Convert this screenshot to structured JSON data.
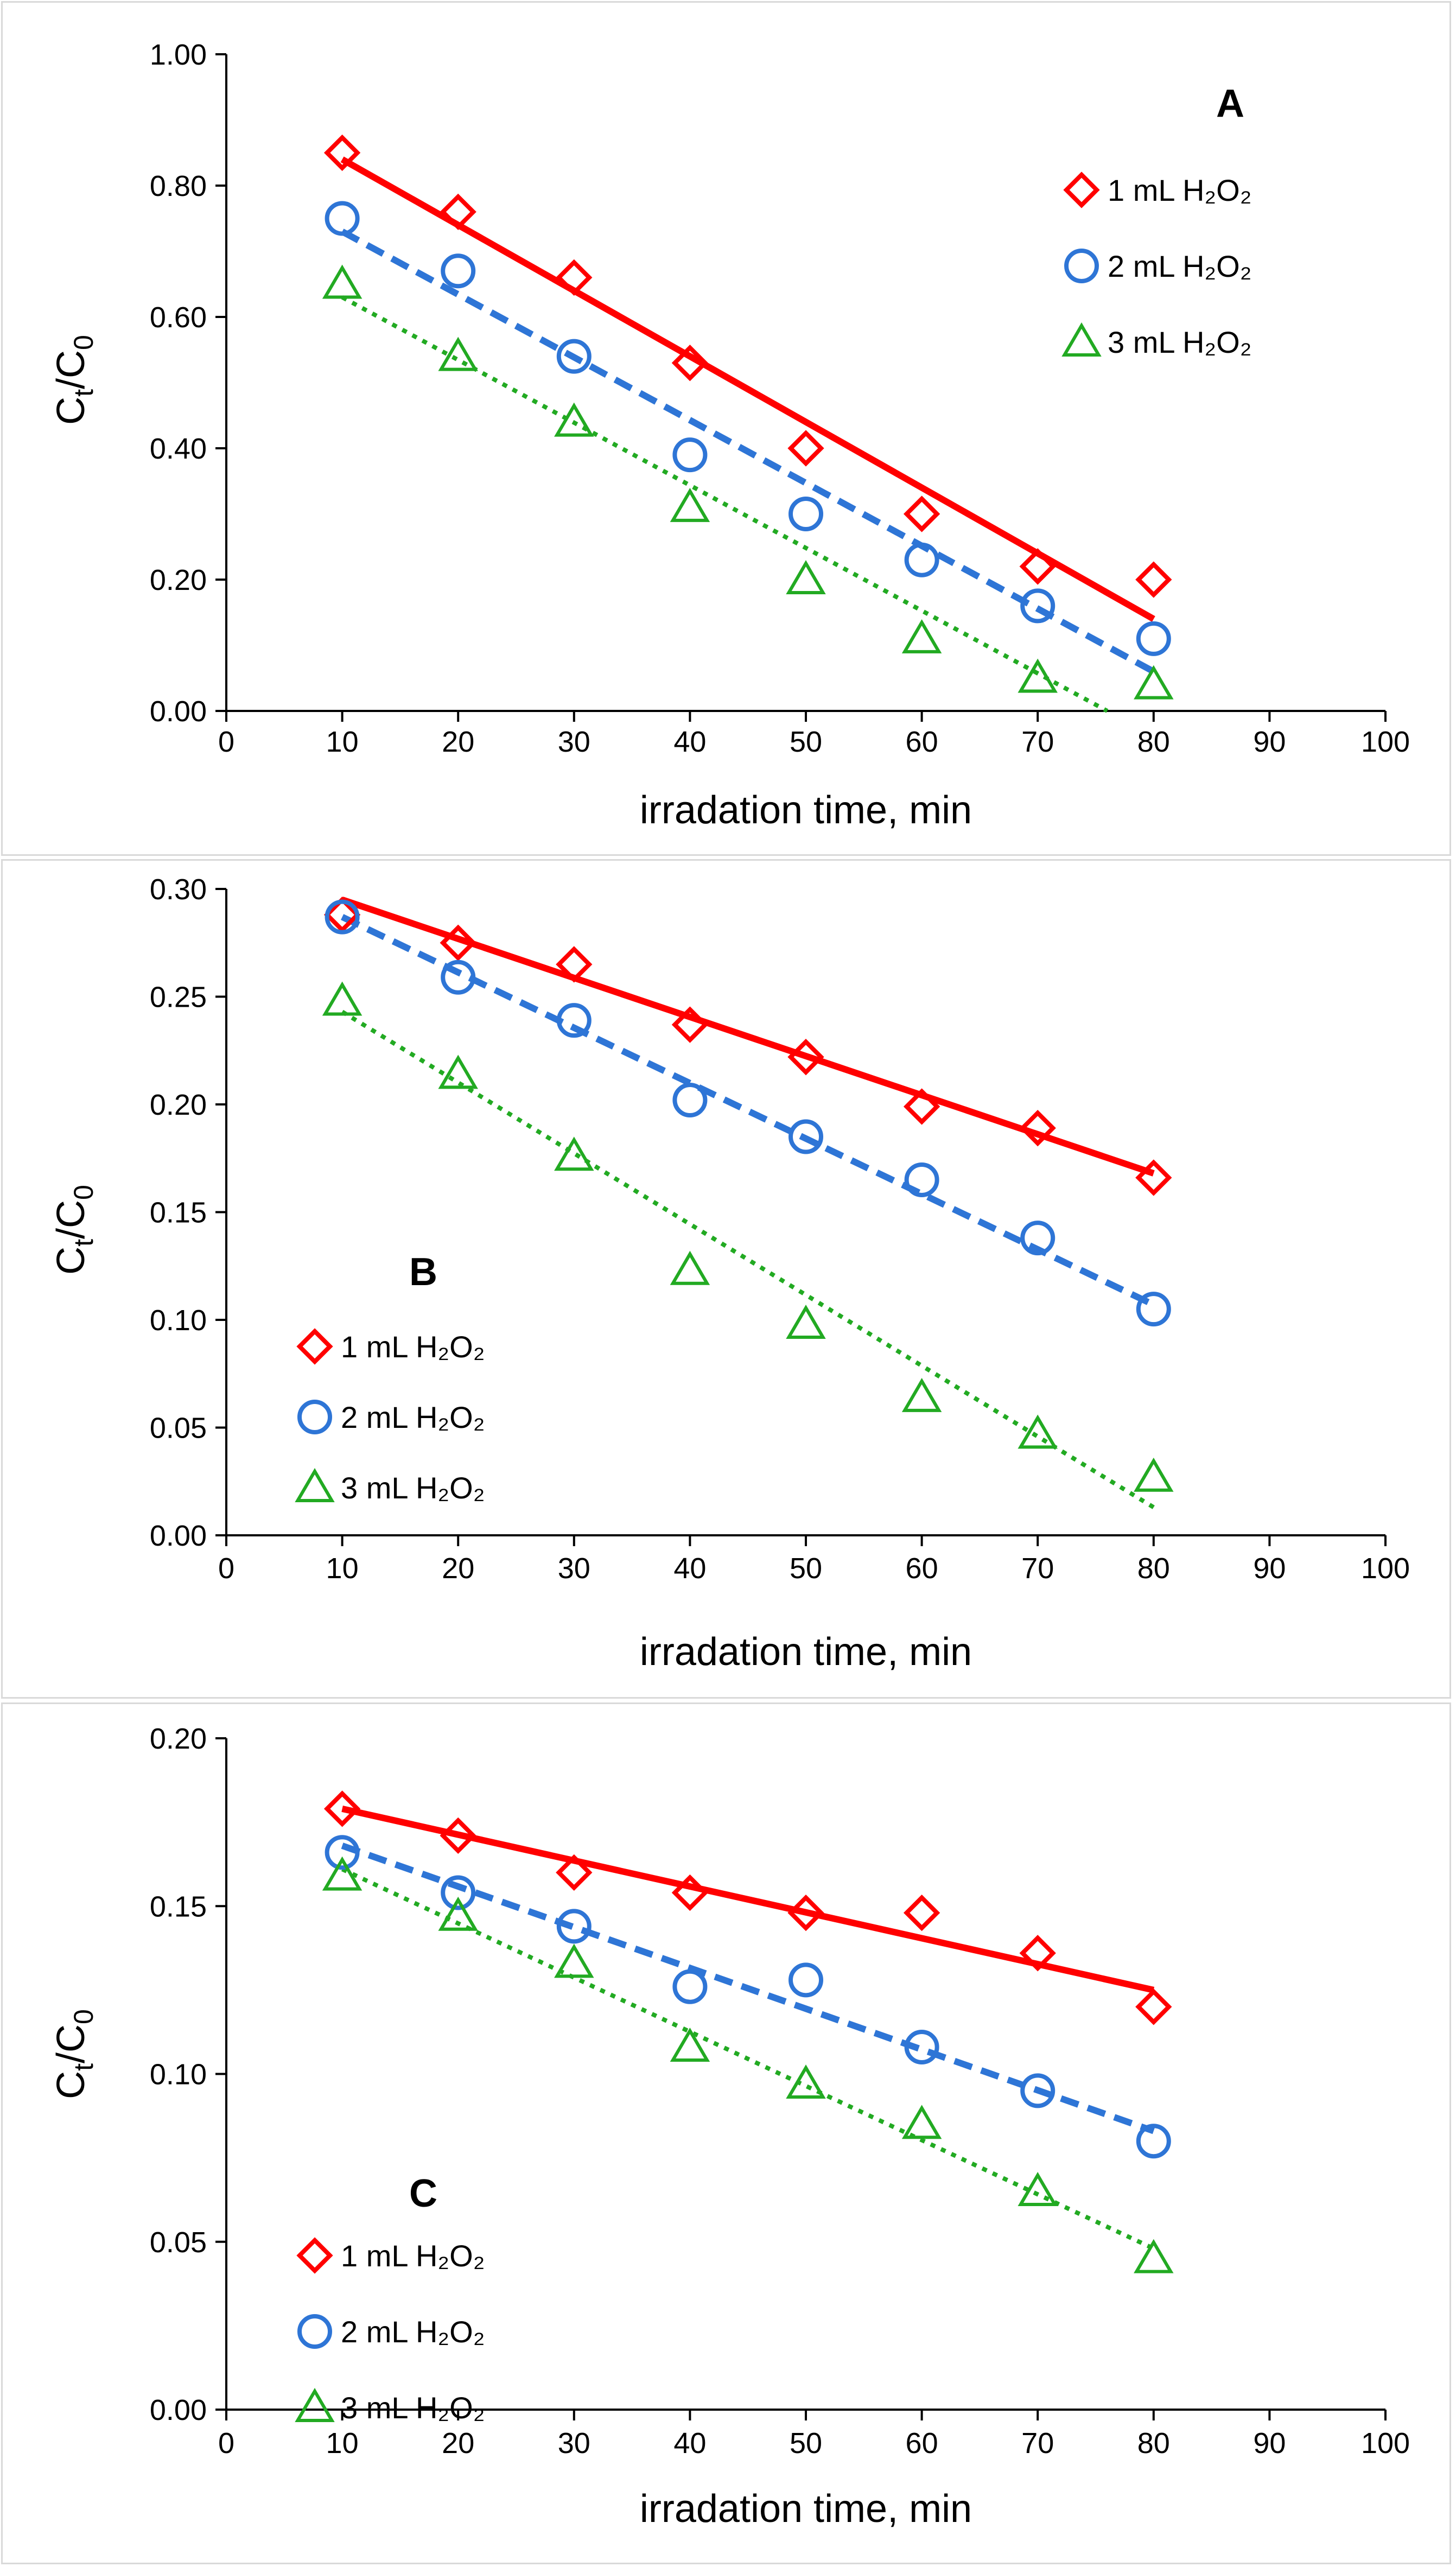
{
  "figure": {
    "series_meta": [
      {
        "name": "1 mL H2O2",
        "color": "#ff0000",
        "marker": "diamond",
        "line": "solid"
      },
      {
        "name": "2 mL H2O2",
        "color": "#2e75d6",
        "marker": "circle",
        "line": "dashed"
      },
      {
        "name": "3 mL H2O2",
        "color": "#22aa22",
        "marker": "triangle",
        "line": "dotted"
      }
    ]
  },
  "chart_data": [
    {
      "type": "scatter",
      "panel_label": "A",
      "xlabel": "irradation time, min",
      "ylabel": "Ct/C0",
      "xlim": [
        0,
        100
      ],
      "ylim": [
        0,
        1.0
      ],
      "xticks": [
        0,
        10,
        20,
        30,
        40,
        50,
        60,
        70,
        80,
        90,
        100
      ],
      "xtick_labels": [
        "0",
        "10",
        "20",
        "30",
        "40",
        "50",
        "60",
        "70",
        "80",
        "90",
        "100"
      ],
      "yticks": [
        0,
        0.2,
        0.4,
        0.6,
        0.8,
        1.0
      ],
      "ytick_labels": [
        "0.00",
        "0.20",
        "0.40",
        "0.60",
        "0.80",
        "1.00"
      ],
      "legend_position": "top-right",
      "x": [
        10,
        20,
        30,
        40,
        50,
        60,
        70,
        80
      ],
      "series": [
        {
          "name": "1 mL H2O2",
          "legend_label": "1 mL H₂O₂",
          "values": [
            0.85,
            0.76,
            0.66,
            0.53,
            0.4,
            0.3,
            0.22,
            0.2
          ],
          "trend": [
            [
              10,
              0.84
            ],
            [
              80,
              0.14
            ]
          ]
        },
        {
          "name": "2 mL H2O2",
          "legend_label": "2 mL H₂O₂",
          "values": [
            0.75,
            0.67,
            0.54,
            0.39,
            0.3,
            0.23,
            0.16,
            0.11
          ],
          "trend": [
            [
              10,
              0.73
            ],
            [
              80,
              0.06
            ]
          ]
        },
        {
          "name": "3 mL H2O2",
          "legend_label": "3 mL H₂O₂",
          "values": [
            0.65,
            0.54,
            0.44,
            0.31,
            0.2,
            0.11,
            0.05,
            0.04
          ],
          "trend": [
            [
              10,
              0.63
            ],
            [
              76,
              0.0
            ]
          ]
        }
      ]
    },
    {
      "type": "scatter",
      "panel_label": "B",
      "xlabel": "irradation time, min",
      "ylabel": "Ct/C0",
      "xlim": [
        0,
        100
      ],
      "ylim": [
        0,
        0.3
      ],
      "xticks": [
        0,
        10,
        20,
        30,
        40,
        50,
        60,
        70,
        80,
        90,
        100
      ],
      "xtick_labels": [
        "0",
        "10",
        "20",
        "30",
        "40",
        "50",
        "60",
        "70",
        "80",
        "90",
        "100"
      ],
      "yticks": [
        0,
        0.05,
        0.1,
        0.15,
        0.2,
        0.25,
        0.3
      ],
      "ytick_labels": [
        "0.00",
        "0.05",
        "0.10",
        "0.15",
        "0.20",
        "0.25",
        "0.30"
      ],
      "legend_position": "middle-left",
      "x": [
        10,
        20,
        30,
        40,
        50,
        60,
        70,
        80
      ],
      "series": [
        {
          "name": "1 mL H2O2",
          "legend_label": "1 mL H₂O₂",
          "values": [
            0.288,
            0.275,
            0.265,
            0.237,
            0.222,
            0.199,
            0.189,
            0.166
          ],
          "trend": [
            [
              10,
              0.295
            ],
            [
              80,
              0.168
            ]
          ]
        },
        {
          "name": "2 mL H2O2",
          "legend_label": "2 mL H₂O₂",
          "values": [
            0.287,
            0.259,
            0.239,
            0.202,
            0.185,
            0.165,
            0.138,
            0.105
          ],
          "trend": [
            [
              10,
              0.287
            ],
            [
              80,
              0.107
            ]
          ]
        },
        {
          "name": "3 mL H2O2",
          "legend_label": "3 mL H₂O₂",
          "values": [
            0.248,
            0.214,
            0.176,
            0.123,
            0.098,
            0.064,
            0.047,
            0.027
          ],
          "trend": [
            [
              10,
              0.243
            ],
            [
              80,
              0.013
            ]
          ]
        }
      ]
    },
    {
      "type": "scatter",
      "panel_label": "C",
      "xlabel": "irradation time, min",
      "ylabel": "Ct/C0",
      "xlim": [
        0,
        100
      ],
      "ylim": [
        0,
        0.2
      ],
      "xticks": [
        0,
        10,
        20,
        30,
        40,
        50,
        60,
        70,
        80,
        90,
        100
      ],
      "xtick_labels": [
        "0",
        "10",
        "20",
        "30",
        "40",
        "50",
        "60",
        "70",
        "80",
        "90",
        "100"
      ],
      "yticks": [
        0,
        0.05,
        0.1,
        0.15,
        0.2
      ],
      "ytick_labels": [
        "0.00",
        "0.05",
        "0.10",
        "0.15",
        "0.20"
      ],
      "legend_position": "bottom-left",
      "x": [
        10,
        20,
        30,
        40,
        50,
        60,
        70,
        80
      ],
      "series": [
        {
          "name": "1 mL H2O2",
          "legend_label": "1 mL H₂O₂",
          "values": [
            0.179,
            0.171,
            0.16,
            0.154,
            0.148,
            0.148,
            0.136,
            0.12
          ],
          "trend": [
            [
              10,
              0.179
            ],
            [
              80,
              0.125
            ]
          ]
        },
        {
          "name": "2 mL H2O2",
          "legend_label": "2 mL H₂O₂",
          "values": [
            0.166,
            0.154,
            0.144,
            0.126,
            0.128,
            0.108,
            0.095,
            0.08
          ],
          "trend": [
            [
              10,
              0.168
            ],
            [
              80,
              0.083
            ]
          ]
        },
        {
          "name": "3 mL H2O2",
          "legend_label": "3 mL H₂O₂",
          "values": [
            0.159,
            0.147,
            0.133,
            0.108,
            0.097,
            0.085,
            0.065,
            0.045
          ],
          "trend": [
            [
              10,
              0.161
            ],
            [
              80,
              0.048
            ]
          ]
        }
      ]
    }
  ]
}
